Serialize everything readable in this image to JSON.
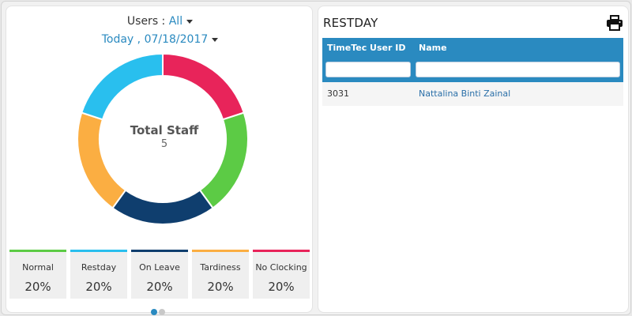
{
  "filters": {
    "users_label": "Users : ",
    "users_value": "All",
    "date_prefix": "Today , ",
    "date_value": "07/18/2017"
  },
  "donut": {
    "center_title": "Total Staff",
    "center_value": "5",
    "segments": [
      {
        "name": "No Clocking",
        "value": 20,
        "color": "#e8245a"
      },
      {
        "name": "Normal",
        "value": 20,
        "color": "#5ccb45"
      },
      {
        "name": "On Leave",
        "value": 20,
        "color": "#0f3e6e"
      },
      {
        "name": "Tardiness",
        "value": 20,
        "color": "#fbae42"
      },
      {
        "name": "Restday",
        "value": 20,
        "color": "#29bfee"
      }
    ]
  },
  "stats": [
    {
      "label": "Normal",
      "value": "20%",
      "color": "#5ccb45"
    },
    {
      "label": "Restday",
      "value": "20%",
      "color": "#29bfee"
    },
    {
      "label": "On Leave",
      "value": "20%",
      "color": "#0f3e6e"
    },
    {
      "label": "Tardiness",
      "value": "20%",
      "color": "#fbae42"
    },
    {
      "label": "No Clocking",
      "value": "20%",
      "color": "#e8245a"
    }
  ],
  "pager": {
    "current_page": 1,
    "total_pages": 2
  },
  "restday": {
    "title": "RESTDAY",
    "print_icon": "printer-icon",
    "columns": [
      "TimeTec User ID",
      "Name"
    ],
    "filter_values": [
      "",
      ""
    ],
    "rows": [
      {
        "id": "3031",
        "name": "Nattalina Binti Zainal"
      }
    ]
  },
  "colors": {
    "accent": "#2a8ac0",
    "panel_bg": "#ffffff",
    "page_bg": "#f1f1f1"
  }
}
